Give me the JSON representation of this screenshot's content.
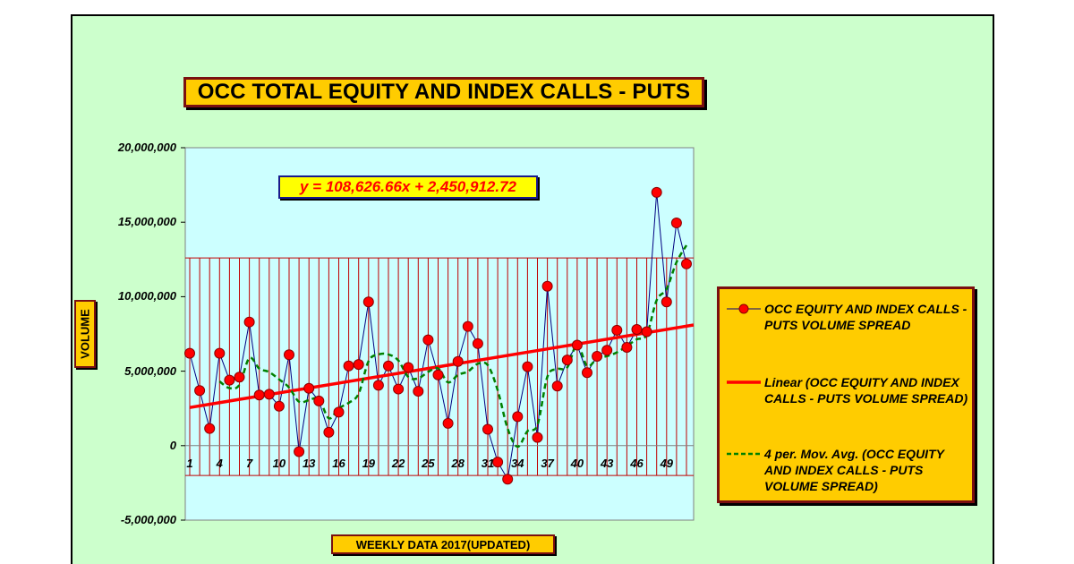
{
  "title": "OCC TOTAL EQUITY AND INDEX CALLS - PUTS",
  "chart_data": {
    "type": "line",
    "title": "OCC TOTAL EQUITY AND INDEX CALLS - PUTS",
    "xlabel": "WEEKLY DATA 2017(UPDATED)",
    "ylabel": "VOLUME",
    "ylim": [
      -5000000,
      20000000
    ],
    "yticks": [
      20000000,
      15000000,
      10000000,
      5000000,
      0,
      -5000000
    ],
    "ytick_labels": [
      "20,000,000",
      "15,000,000",
      "10,000,000",
      "5,000,000",
      "0",
      "-5,000,000"
    ],
    "x_tick_labels": [
      "1",
      "4",
      "7",
      "10",
      "13",
      "16",
      "19",
      "22",
      "25",
      "28",
      "31",
      "34",
      "37",
      "40",
      "43",
      "46",
      "49"
    ],
    "x_range": [
      1,
      52
    ],
    "background_color": "#ccffff",
    "series": [
      {
        "name": "OCC EQUITY AND INDEX CALLS - PUTS VOLUME SPREAD",
        "color": "#000080",
        "marker_color": "#ff0000",
        "x": [
          1,
          2,
          3,
          4,
          5,
          6,
          7,
          8,
          9,
          10,
          11,
          12,
          13,
          14,
          15,
          16,
          17,
          18,
          19,
          20,
          21,
          22,
          23,
          24,
          25,
          26,
          27,
          28,
          29,
          30,
          31,
          32,
          33,
          34,
          35,
          36,
          37,
          38,
          39,
          40,
          41,
          42,
          43,
          44,
          45,
          46,
          47,
          48,
          49,
          50,
          51
        ],
        "values": [
          6200000,
          3700000,
          1150000,
          6200000,
          4400000,
          4600000,
          8300000,
          3400000,
          3450000,
          2650000,
          6100000,
          -400000,
          3850000,
          3000000,
          900000,
          2250000,
          5350000,
          5450000,
          9650000,
          4050000,
          5350000,
          3800000,
          5250000,
          3650000,
          7100000,
          4750000,
          1500000,
          5650000,
          8000000,
          6850000,
          1100000,
          -1100000,
          -2250000,
          1950000,
          5300000,
          550000,
          10700000,
          4000000,
          5750000,
          6750000,
          4900000,
          6000000,
          6400000,
          7750000,
          6600000,
          7800000,
          7650000,
          17000000,
          9650000,
          14950000,
          12200000
        ]
      },
      {
        "name": "Linear (OCC EQUITY AND INDEX CALLS - PUTS VOLUME SPREAD)",
        "color": "#ff0000",
        "equation": "y = 108,626.66x + 2,450,912.72",
        "slope": 108626.66,
        "intercept": 2450912.72
      },
      {
        "name": "4 per. Mov. Avg. (OCC EQUITY AND INDEX CALLS - PUTS VOLUME SPREAD)",
        "color": "#008000",
        "period": 4
      }
    ],
    "legend_placement": "right",
    "grid": false
  }
}
